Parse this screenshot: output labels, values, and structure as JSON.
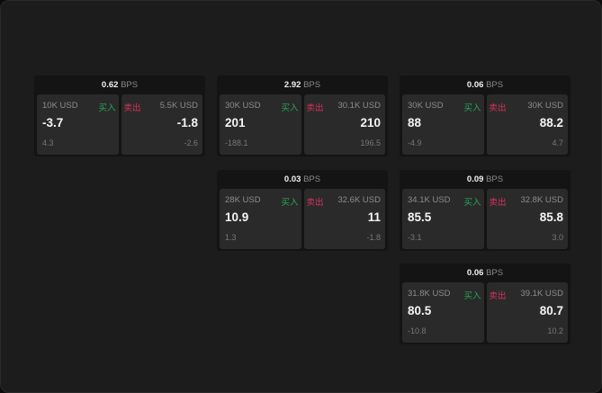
{
  "unit": "BPS",
  "buy_label": "买入",
  "sell_label": "卖出",
  "colors": {
    "buy": "#27a659",
    "sell": "#d6325d",
    "background": "#1c1c1c"
  },
  "cards": [
    {
      "spread": "0.62",
      "buy": {
        "amount": "10K USD",
        "price": "-3.7",
        "change": "4.3"
      },
      "sell": {
        "amount": "5.5K USD",
        "price": "-1.8",
        "change": "-2.6"
      }
    },
    {
      "spread": "2.92",
      "buy": {
        "amount": "30K USD",
        "price": "201",
        "change": "-188.1"
      },
      "sell": {
        "amount": "30.1K USD",
        "price": "210",
        "change": "196.5"
      }
    },
    {
      "spread": "0.06",
      "buy": {
        "amount": "30K USD",
        "price": "88",
        "change": "-4.9"
      },
      "sell": {
        "amount": "30K USD",
        "price": "88.2",
        "change": "4.7"
      }
    },
    {
      "spread": "0.03",
      "buy": {
        "amount": "28K USD",
        "price": "10.9",
        "change": "1.3"
      },
      "sell": {
        "amount": "32.6K USD",
        "price": "11",
        "change": "-1.8"
      }
    },
    {
      "spread": "0.09",
      "buy": {
        "amount": "34.1K USD",
        "price": "85.5",
        "change": "-3.1"
      },
      "sell": {
        "amount": "32.8K USD",
        "price": "85.8",
        "change": "3.0"
      }
    },
    {
      "spread": "0.06",
      "buy": {
        "amount": "31.8K USD",
        "price": "80.5",
        "change": "-10.8"
      },
      "sell": {
        "amount": "39.1K USD",
        "price": "80.7",
        "change": "10.2"
      }
    }
  ]
}
